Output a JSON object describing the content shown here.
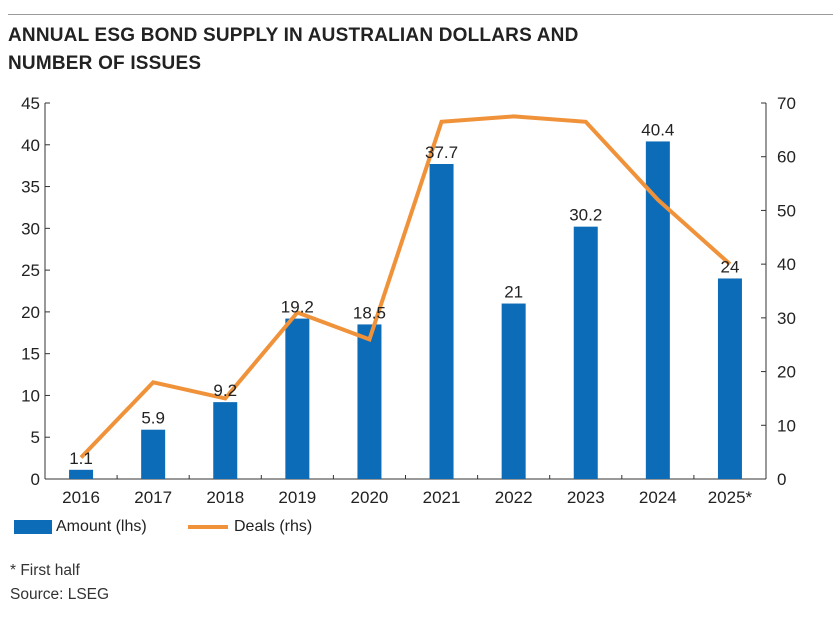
{
  "title": "ANNUAL ESG BOND SUPPLY IN AUSTRALIAN DOLLARS AND NUMBER OF ISSUES",
  "colors": {
    "bars": "#0d6cb7",
    "line": "#f0923a",
    "axis": "#333333",
    "text": "#222222"
  },
  "legend": {
    "bar_label": "Amount (lhs)",
    "line_label": "Deals (rhs)"
  },
  "footnote": "* First half",
  "source": "Source: LSEG",
  "chart_data": {
    "type": "bar+line",
    "title": "ANNUAL ESG BOND SUPPLY IN AUSTRALIAN DOLLARS AND NUMBER OF ISSUES",
    "categories": [
      "2016",
      "2017",
      "2018",
      "2019",
      "2020",
      "2021",
      "2022",
      "2023",
      "2024",
      "2025*"
    ],
    "series": [
      {
        "name": "Amount (lhs)",
        "type": "bar",
        "axis": "left",
        "values": [
          1.1,
          5.9,
          9.2,
          19.2,
          18.5,
          37.7,
          21,
          30.2,
          40.4,
          24
        ],
        "labels": [
          "1.1",
          "5.9",
          "9.2",
          "19.2",
          "18.5",
          "37.7",
          "21",
          "30.2",
          "40.4",
          "24"
        ]
      },
      {
        "name": "Deals (rhs)",
        "type": "line",
        "axis": "right",
        "values": [
          4,
          18,
          15,
          31,
          26,
          66.5,
          67.5,
          66.5,
          52,
          40
        ]
      }
    ],
    "left_axis": {
      "ylim": [
        0,
        45
      ],
      "ticks": [
        "0",
        "5",
        "10",
        "15",
        "20",
        "25",
        "30",
        "35",
        "40",
        "45"
      ]
    },
    "right_axis": {
      "ylim": [
        0,
        70
      ],
      "ticks": [
        "0",
        "10",
        "20",
        "30",
        "40",
        "50",
        "60",
        "70"
      ]
    },
    "grid": false,
    "legend_position": "bottom-left"
  }
}
